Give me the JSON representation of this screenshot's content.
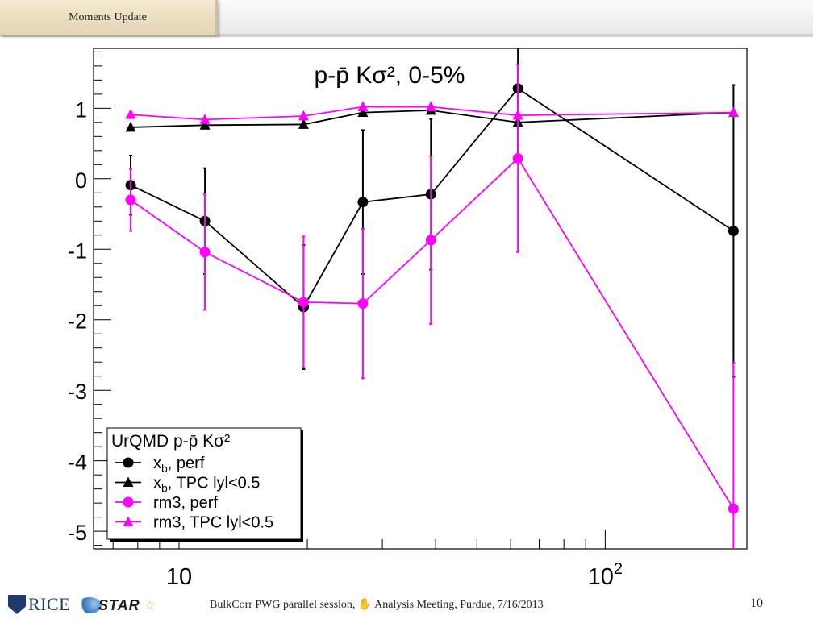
{
  "slide": {
    "section_tab": "Moments Update",
    "footer_text": "BulkCorr PWG parallel session, ✋ Analysis Meeting, Purdue, 7/16/2013",
    "page_number": "10",
    "logo_rice": "RICE",
    "logo_star": "STAR"
  },
  "chart_data": {
    "type": "line",
    "title": "p-p̄ Kσ², 0-5%",
    "xscale": "log",
    "xlim": [
      6.3,
      215
    ],
    "ylim": [
      -5.25,
      1.85
    ],
    "xlabel": "",
    "ylabel": "",
    "grid": false,
    "yticks": [
      -5,
      -4,
      -3,
      -2,
      -1,
      0,
      1
    ],
    "xtick_major": [
      10,
      100
    ],
    "xtick_minor": [
      7,
      8,
      9,
      20,
      30,
      40,
      50,
      60,
      70,
      80,
      90,
      200
    ],
    "x_tick_labels": [
      {
        "x": 10,
        "base": "10",
        "exp": ""
      },
      {
        "x": 100,
        "base": "10",
        "exp": "2"
      }
    ],
    "legend": {
      "title": "UrQMD p-p̄ Kσ²",
      "position": "bottom-left"
    },
    "x": [
      7.7,
      11.5,
      19.6,
      27,
      39,
      62.4,
      200
    ],
    "series": [
      {
        "name": "x_b, perf",
        "label_main": "x",
        "label_sub": "b",
        "label_rest": ", perf",
        "marker": "circle",
        "color": "#000000",
        "y": [
          -0.09,
          -0.6,
          -1.82,
          -0.33,
          -0.22,
          1.28,
          -0.74
        ],
        "err": [
          0.42,
          0.75,
          0.88,
          1.02,
          1.07,
          1.0,
          2.07
        ]
      },
      {
        "name": "x_b, TPC |y|<0.5",
        "label_main": "x",
        "label_sub": "b",
        "label_rest": ", TPC lyl<0.5",
        "marker": "triangle",
        "color": "#000000",
        "y": [
          0.73,
          0.76,
          0.77,
          0.94,
          0.97,
          0.8,
          0.94
        ],
        "err": [
          0,
          0,
          0,
          0,
          0,
          0,
          0
        ]
      },
      {
        "name": "rm3, perf",
        "label_main": "rm3, perf",
        "label_sub": "",
        "label_rest": "",
        "marker": "circle",
        "color": "#ff00ff",
        "y": [
          -0.3,
          -1.04,
          -1.75,
          -1.77,
          -0.87,
          0.29,
          -4.68
        ],
        "err": [
          0.44,
          0.82,
          0.93,
          1.06,
          1.19,
          1.33,
          2.07
        ]
      },
      {
        "name": "rm3, TPC |y|<0.5",
        "label_main": "rm3, TPC lyl<0.5",
        "label_sub": "",
        "label_rest": "",
        "marker": "triangle",
        "color": "#ff00ff",
        "y": [
          0.91,
          0.84,
          0.89,
          1.02,
          1.02,
          0.9,
          0.94
        ],
        "err": [
          0,
          0,
          0,
          0,
          0,
          0,
          0
        ]
      }
    ]
  }
}
